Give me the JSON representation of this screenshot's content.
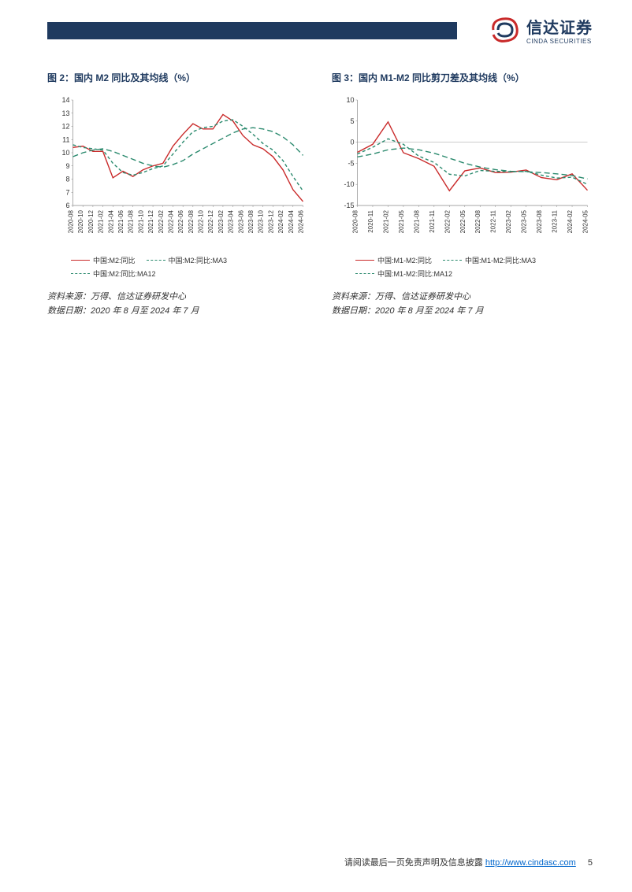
{
  "header": {
    "logo_cn": "信达证券",
    "logo_en": "CINDA SECURITIES"
  },
  "chart_left": {
    "title": "图 2：国内 M2 同比及其均线（%）",
    "type": "line",
    "x_labels": [
      "2020-08",
      "2020-10",
      "2020-12",
      "2021-02",
      "2021-04",
      "2021-06",
      "2021-08",
      "2021-10",
      "2021-12",
      "2022-02",
      "2022-04",
      "2022-06",
      "2022-08",
      "2022-10",
      "2022-12",
      "2023-02",
      "2023-04",
      "2023-06",
      "2023-08",
      "2023-10",
      "2023-12",
      "2024-02",
      "2024-04",
      "2024-06"
    ],
    "ylim": [
      6,
      14
    ],
    "yticks": [
      6,
      7,
      8,
      9,
      10,
      11,
      12,
      13,
      14
    ],
    "series": [
      {
        "label": "中国:M2:同比",
        "color": "#c92a2a",
        "dash": "none",
        "values": [
          10.4,
          10.5,
          10.1,
          10.1,
          8.1,
          8.6,
          8.2,
          8.7,
          9.0,
          9.2,
          10.5,
          11.4,
          12.2,
          11.8,
          11.8,
          12.9,
          12.4,
          11.3,
          10.6,
          10.3,
          9.7,
          8.7,
          7.2,
          6.3
        ]
      },
      {
        "label": "中国:M2:同比:MA3",
        "color": "#2b8a6e",
        "dash": "4,3",
        "values": [
          10.6,
          10.4,
          10.3,
          10.2,
          9.2,
          8.5,
          8.3,
          8.5,
          8.8,
          9.0,
          9.9,
          10.8,
          11.6,
          11.9,
          12.0,
          12.4,
          12.5,
          12.0,
          11.4,
          10.7,
          10.2,
          9.4,
          8.2,
          7.1
        ]
      },
      {
        "label": "中国:M2:同比:MA12",
        "color": "#2b8a6e",
        "dash": "7,4",
        "values": [
          9.7,
          10.0,
          10.2,
          10.3,
          10.1,
          9.8,
          9.5,
          9.2,
          9.0,
          8.9,
          9.1,
          9.4,
          9.9,
          10.3,
          10.7,
          11.1,
          11.5,
          11.8,
          11.9,
          11.8,
          11.6,
          11.2,
          10.6,
          9.8
        ]
      }
    ],
    "source": "资料来源：万得、信达证券研发中心",
    "date_range": "数据日期：2020 年 8 月至 2024 年 7 月",
    "background_color": "#ffffff",
    "axis_fontsize": 9,
    "line_width": 1.4
  },
  "chart_right": {
    "title": "图 3：国内 M1-M2 同比剪刀差及其均线（%）",
    "type": "line",
    "x_labels": [
      "2020-08",
      "2020-11",
      "2021-02",
      "2021-05",
      "2021-08",
      "2021-11",
      "2022-02",
      "2022-05",
      "2022-08",
      "2022-11",
      "2023-02",
      "2023-05",
      "2023-08",
      "2023-11",
      "2024-02",
      "2024-05"
    ],
    "ylim": [
      -15,
      10
    ],
    "yticks": [
      -15,
      -10,
      -5,
      0,
      5,
      10
    ],
    "series": [
      {
        "label": "中国:M1-M2:同比",
        "color": "#c92a2a",
        "dash": "none",
        "values": [
          -2.4,
          -0.5,
          4.8,
          -2.5,
          -3.9,
          -5.7,
          -11.5,
          -6.8,
          -6.1,
          -7.2,
          -7.1,
          -6.6,
          -8.4,
          -8.9,
          -7.5,
          -11.4
        ]
      },
      {
        "label": "中国:M1-M2:同比:MA3",
        "color": "#2b8a6e",
        "dash": "4,3",
        "values": [
          -2.8,
          -1.2,
          0.8,
          -0.5,
          -3.3,
          -4.8,
          -7.6,
          -8.0,
          -6.7,
          -6.9,
          -7.0,
          -6.9,
          -7.8,
          -8.5,
          -8.3,
          -10.0
        ]
      },
      {
        "label": "中国:M1-M2:同比:MA12",
        "color": "#2b8a6e",
        "dash": "7,4",
        "values": [
          -3.5,
          -2.8,
          -1.8,
          -1.4,
          -1.8,
          -2.6,
          -3.8,
          -5.0,
          -5.9,
          -6.5,
          -6.9,
          -7.0,
          -7.2,
          -7.5,
          -7.9,
          -8.7
        ]
      }
    ],
    "source": "资料来源：万得、信达证券研发中心",
    "date_range": "数据日期：2020 年 8 月至 2024 年 7 月",
    "background_color": "#ffffff",
    "axis_fontsize": 9,
    "line_width": 1.4
  },
  "footer": {
    "disclaimer": "请阅读最后一页免责声明及信息披露",
    "url": "http://www.cindasc.com",
    "page": "5"
  }
}
